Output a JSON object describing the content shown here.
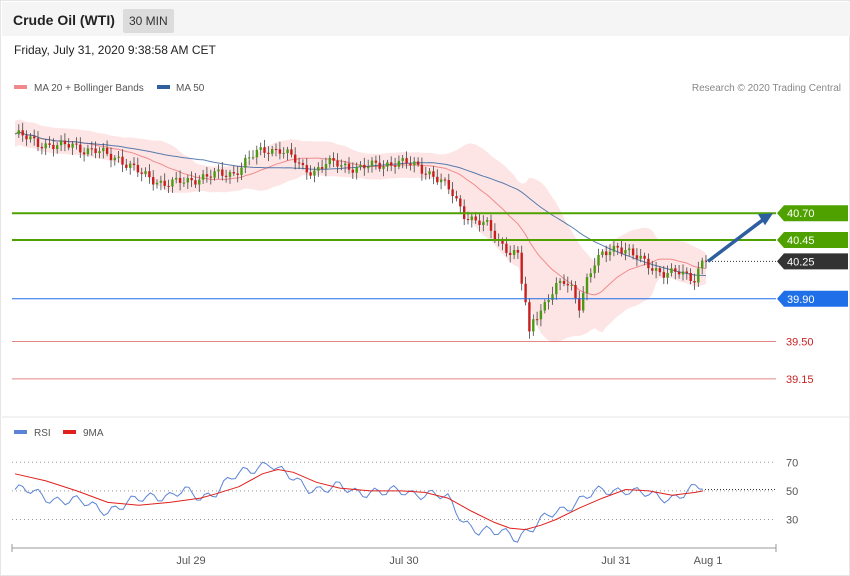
{
  "header": {
    "title": "Crude Oil (WTI)",
    "timeframe": "30 MIN",
    "datetime": "Friday, July 31, 2020 9:38:58 AM CET"
  },
  "legend": [
    {
      "label": "MA 20 + Bollinger Bands",
      "color": "#f08a8a"
    },
    {
      "label": "MA 50",
      "color": "#2e5f9e"
    }
  ],
  "credit": "Research © 2020 Trading Central",
  "rsi_legend": [
    {
      "label": "RSI",
      "color": "#5b84d6"
    },
    {
      "label": "9MA",
      "color": "#e0201b"
    }
  ],
  "chart_data": [
    {
      "type": "line",
      "title": "Crude Oil (WTI)",
      "xlabel": "",
      "ylabel": "",
      "x_ticks": [
        "Jul 29",
        "Jul 30",
        "Jul 31",
        "Aug 1"
      ],
      "ylim": [
        38.85,
        41.75
      ],
      "levels": [
        {
          "value": 40.7,
          "label": "40.70",
          "color": "#4fa100",
          "style": "resistance"
        },
        {
          "value": 40.45,
          "label": "40.45",
          "color": "#4fa100",
          "style": "resistance"
        },
        {
          "value": 40.25,
          "label": "40.25",
          "color": "#333333",
          "style": "last-price"
        },
        {
          "value": 39.9,
          "label": "39.90",
          "color": "#1f6fe8",
          "style": "pivot"
        },
        {
          "value": 39.5,
          "label": "39.50",
          "color": "#cc2222",
          "style": "support"
        },
        {
          "value": 39.15,
          "label": "39.15",
          "color": "#cc2222",
          "style": "support"
        }
      ],
      "forecast_arrow": {
        "from": 40.25,
        "to": 40.7
      },
      "close_path": [
        [
          0,
          41.44
        ],
        [
          3,
          41.4
        ],
        [
          6,
          41.36
        ],
        [
          9,
          41.34
        ],
        [
          12,
          41.32
        ],
        [
          15,
          41.34
        ],
        [
          18,
          41.3
        ],
        [
          21,
          41.28
        ],
        [
          24,
          41.24
        ],
        [
          27,
          41.22
        ],
        [
          30,
          41.14
        ],
        [
          33,
          41.06
        ],
        [
          36,
          41.02
        ],
        [
          39,
          40.98
        ],
        [
          42,
          40.98
        ],
        [
          45,
          41.0
        ],
        [
          48,
          41.04
        ],
        [
          51,
          41.05
        ],
        [
          54,
          41.06
        ],
        [
          57,
          41.08
        ],
        [
          60,
          41.18
        ],
        [
          63,
          41.26
        ],
        [
          66,
          41.3
        ],
        [
          69,
          41.3
        ],
        [
          72,
          41.22
        ],
        [
          75,
          41.12
        ],
        [
          78,
          41.1
        ],
        [
          81,
          41.16
        ],
        [
          84,
          41.16
        ],
        [
          87,
          41.14
        ],
        [
          90,
          41.12
        ],
        [
          93,
          41.14
        ],
        [
          96,
          41.16
        ],
        [
          99,
          41.18
        ],
        [
          102,
          41.16
        ],
        [
          105,
          41.14
        ],
        [
          108,
          41.08
        ],
        [
          111,
          40.99
        ],
        [
          114,
          40.88
        ],
        [
          117,
          40.7
        ],
        [
          120,
          40.62
        ],
        [
          123,
          40.58
        ],
        [
          126,
          40.45
        ],
        [
          129,
          40.34
        ],
        [
          131,
          40.3
        ],
        [
          132,
          40.05
        ],
        [
          133,
          39.85
        ],
        [
          134,
          39.55
        ],
        [
          135,
          39.72
        ],
        [
          137,
          39.8
        ],
        [
          139,
          39.92
        ],
        [
          141,
          40.0
        ],
        [
          143,
          40.05
        ],
        [
          145,
          40.0
        ],
        [
          147,
          39.85
        ],
        [
          149,
          40.08
        ],
        [
          151,
          40.22
        ],
        [
          153,
          40.3
        ],
        [
          155,
          40.36
        ],
        [
          157,
          40.4
        ],
        [
          159,
          40.36
        ],
        [
          161,
          40.3
        ],
        [
          163,
          40.26
        ],
        [
          165,
          40.22
        ],
        [
          167,
          40.18
        ],
        [
          169,
          40.14
        ],
        [
          171,
          40.13
        ],
        [
          173,
          40.14
        ],
        [
          175,
          40.12
        ],
        [
          177,
          40.1
        ],
        [
          179,
          40.25
        ],
        [
          180,
          40.25
        ]
      ],
      "rsi": {
        "ylim": [
          15,
          80
        ],
        "levels": [
          70,
          50,
          30
        ],
        "values": [
          [
            0,
            51
          ],
          [
            4,
            49
          ],
          [
            8,
            46
          ],
          [
            12,
            44
          ],
          [
            16,
            42
          ],
          [
            20,
            40
          ],
          [
            24,
            37
          ],
          [
            28,
            39
          ],
          [
            32,
            44
          ],
          [
            36,
            48
          ],
          [
            40,
            46
          ],
          [
            44,
            49
          ],
          [
            48,
            46
          ],
          [
            52,
            50
          ],
          [
            56,
            58
          ],
          [
            60,
            64
          ],
          [
            64,
            69
          ],
          [
            66,
            70
          ],
          [
            68,
            64
          ],
          [
            72,
            58
          ],
          [
            76,
            53
          ],
          [
            80,
            51
          ],
          [
            84,
            52
          ],
          [
            88,
            50
          ],
          [
            92,
            50
          ],
          [
            96,
            48
          ],
          [
            100,
            50
          ],
          [
            104,
            49
          ],
          [
            108,
            47
          ],
          [
            112,
            44
          ],
          [
            116,
            30
          ],
          [
            120,
            22
          ],
          [
            124,
            20
          ],
          [
            128,
            21
          ],
          [
            130,
            18
          ],
          [
            132,
            22
          ],
          [
            134,
            24
          ],
          [
            138,
            32
          ],
          [
            142,
            38
          ],
          [
            146,
            44
          ],
          [
            150,
            48
          ],
          [
            154,
            50
          ],
          [
            158,
            52
          ],
          [
            162,
            48
          ],
          [
            166,
            45
          ],
          [
            170,
            46
          ],
          [
            174,
            50
          ],
          [
            178,
            52
          ]
        ],
        "ma": [
          [
            0,
            62
          ],
          [
            8,
            57
          ],
          [
            16,
            50
          ],
          [
            24,
            42
          ],
          [
            32,
            40
          ],
          [
            40,
            42
          ],
          [
            48,
            45
          ],
          [
            52,
            48
          ],
          [
            58,
            53
          ],
          [
            64,
            62
          ],
          [
            68,
            65
          ],
          [
            72,
            63
          ],
          [
            78,
            56
          ],
          [
            84,
            52
          ],
          [
            92,
            50
          ],
          [
            100,
            50
          ],
          [
            106,
            49
          ],
          [
            112,
            45
          ],
          [
            118,
            36
          ],
          [
            124,
            28
          ],
          [
            128,
            24
          ],
          [
            132,
            23
          ],
          [
            136,
            26
          ],
          [
            140,
            30
          ],
          [
            146,
            38
          ],
          [
            152,
            45
          ],
          [
            158,
            51
          ],
          [
            164,
            50
          ],
          [
            170,
            47
          ],
          [
            176,
            49
          ],
          [
            178,
            50
          ]
        ]
      }
    }
  ]
}
